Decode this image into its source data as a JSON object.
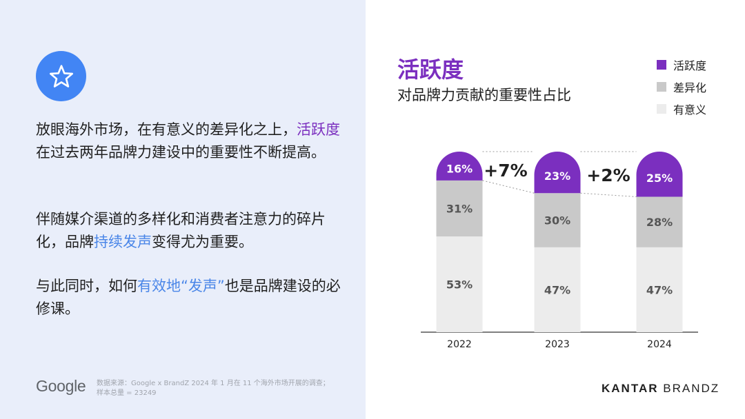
{
  "left": {
    "para1_a": "放眼海外市场，在有意义的差异化之上，",
    "para1_highlight": "活跃度",
    "para1_b": "在过去两年品牌力建设中的重要性不断提高。",
    "para2_a": "伴随媒介渠道的多样化和消费者注意力的碎片化，品牌",
    "para2_highlight": "持续发声",
    "para2_b": "变得尤为重要。",
    "para3_a": "与此同时，如何",
    "para3_highlight": "有效地“发声”",
    "para3_b": "也是品牌建设的必修课。",
    "google_logo": "Google",
    "source_line1": "数据来源：Google x BrandZ 2024 年 1 月在 11 个海外市场开展的调查；",
    "source_line2": "样本总量 = 23249"
  },
  "brand": {
    "kantar": "KANTAR",
    "brandz": "BRANDZ"
  },
  "colors": {
    "active": "#7b2fbf",
    "differentiated": "#c9c9c9",
    "meaningful": "#ececec",
    "accent_blue": "#4285f4"
  },
  "chart_data": {
    "type": "bar",
    "stacked": true,
    "title": "活跃度",
    "subtitle": "对品牌力贡献的重要性占比",
    "categories": [
      "2022",
      "2023",
      "2024"
    ],
    "series": [
      {
        "name": "有意义",
        "values": [
          53,
          47,
          47
        ],
        "color": "#ececec",
        "labels": [
          "53%",
          "47%",
          "47%"
        ]
      },
      {
        "name": "差异化",
        "values": [
          31,
          30,
          28
        ],
        "color": "#c9c9c9",
        "labels": [
          "31%",
          "30%",
          "28%"
        ]
      },
      {
        "name": "活跃度",
        "values": [
          16,
          23,
          25
        ],
        "color": "#7b2fbf",
        "labels": [
          "16%",
          "23%",
          "25%"
        ]
      }
    ],
    "legend": [
      "活跃度",
      "差异化",
      "有意义"
    ],
    "annotations": [
      "+7%",
      "+2%"
    ],
    "ylim": [
      0,
      100
    ]
  }
}
